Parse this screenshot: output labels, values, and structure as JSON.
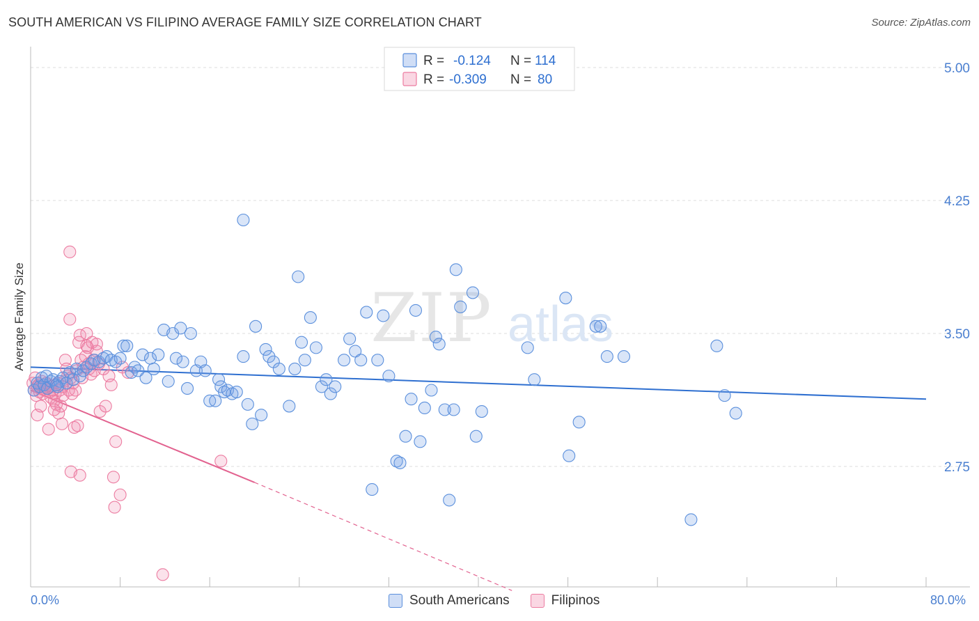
{
  "title": "SOUTH AMERICAN VS FILIPINO AVERAGE FAMILY SIZE CORRELATION CHART",
  "source": "Source: ZipAtlas.com",
  "watermark": {
    "zip": "ZIP",
    "atlas": "atlas"
  },
  "colors": {
    "blue": "#5a8fdc",
    "blue_fill": "rgba(120,160,230,0.28)",
    "blue_line": "#2e6fd0",
    "pink": "#ec7ba0",
    "pink_fill": "rgba(240,140,175,0.25)",
    "pink_line": "#e2628f",
    "axis_text": "#4a7fd0",
    "grid": "#dddddd"
  },
  "legend_top": [
    {
      "r_label": "R =",
      "r_value": "-0.124",
      "n_label": "N =",
      "n_value": "114"
    },
    {
      "r_label": "R =",
      "r_value": "-0.309",
      "n_label": "N =",
      "n_value": "80"
    }
  ],
  "legend_bottom": [
    "South Americans",
    "Filipinos"
  ],
  "chart_data": {
    "type": "scatter",
    "title": "SOUTH AMERICAN VS FILIPINO AVERAGE FAMILY SIZE CORRELATION CHART",
    "xlabel": "",
    "ylabel": "Average Family Size",
    "xlim": [
      0,
      80
    ],
    "ylim": [
      2.0,
      5.2
    ],
    "x_tick_labels": [
      "0.0%",
      "80.0%"
    ],
    "y_ticks": [
      2.75,
      3.5,
      4.25,
      5.0
    ],
    "y_tick_labels": [
      "2.75",
      "3.50",
      "4.25",
      "5.00"
    ],
    "grid": true,
    "legend_placement": "top-center",
    "series": [
      {
        "name": "South Americans",
        "r": -0.124,
        "n": 114,
        "trend": {
          "x": [
            0,
            80
          ],
          "y": [
            3.31,
            3.13
          ]
        },
        "points": [
          [
            0.3,
            3.18
          ],
          [
            0.6,
            3.22
          ],
          [
            0.8,
            3.2
          ],
          [
            1.0,
            3.25
          ],
          [
            1.2,
            3.21
          ],
          [
            1.5,
            3.19
          ],
          [
            1.8,
            3.23
          ],
          [
            2.0,
            3.24
          ],
          [
            2.3,
            3.21
          ],
          [
            2.6,
            3.23
          ],
          [
            2.9,
            3.25
          ],
          [
            3.2,
            3.22
          ],
          [
            3.5,
            3.28
          ],
          [
            3.8,
            3.24
          ],
          [
            4.1,
            3.3
          ],
          [
            4.4,
            3.26
          ],
          [
            4.7,
            3.29
          ],
          [
            5.0,
            3.31
          ],
          [
            5.4,
            3.33
          ],
          [
            5.7,
            3.35
          ],
          [
            6.1,
            3.34
          ],
          [
            6.5,
            3.36
          ],
          [
            6.8,
            3.37
          ],
          [
            7.2,
            3.35
          ],
          [
            7.6,
            3.34
          ],
          [
            8.0,
            3.36
          ],
          [
            8.3,
            3.43
          ],
          [
            8.6,
            3.43
          ],
          [
            9.0,
            3.28
          ],
          [
            9.3,
            3.31
          ],
          [
            9.6,
            3.29
          ],
          [
            10.0,
            3.38
          ],
          [
            10.3,
            3.25
          ],
          [
            10.7,
            3.36
          ],
          [
            11.0,
            3.3
          ],
          [
            11.4,
            3.38
          ],
          [
            11.9,
            3.52
          ],
          [
            12.3,
            3.23
          ],
          [
            12.7,
            3.5
          ],
          [
            13.0,
            3.36
          ],
          [
            13.4,
            3.53
          ],
          [
            13.6,
            3.34
          ],
          [
            14.0,
            3.19
          ],
          [
            14.3,
            3.5
          ],
          [
            14.8,
            3.29
          ],
          [
            15.2,
            3.34
          ],
          [
            15.6,
            3.29
          ],
          [
            16.0,
            3.12
          ],
          [
            16.5,
            3.12
          ],
          [
            16.8,
            3.24
          ],
          [
            17.0,
            3.2
          ],
          [
            17.3,
            3.17
          ],
          [
            17.6,
            3.18
          ],
          [
            18.0,
            3.16
          ],
          [
            18.4,
            3.17
          ],
          [
            19.0,
            3.37
          ],
          [
            19.4,
            3.1
          ],
          [
            19.8,
            2.99
          ],
          [
            20.1,
            3.54
          ],
          [
            20.6,
            3.04
          ],
          [
            21.0,
            3.41
          ],
          [
            21.3,
            3.37
          ],
          [
            21.7,
            3.34
          ],
          [
            22.2,
            3.3
          ],
          [
            23.1,
            3.09
          ],
          [
            23.6,
            3.3
          ],
          [
            23.9,
            3.82
          ],
          [
            24.2,
            3.45
          ],
          [
            24.5,
            3.35
          ],
          [
            25.0,
            3.59
          ],
          [
            25.5,
            3.42
          ],
          [
            26.0,
            3.2
          ],
          [
            26.4,
            3.24
          ],
          [
            26.8,
            3.16
          ],
          [
            27.2,
            3.2
          ],
          [
            28.0,
            3.35
          ],
          [
            28.5,
            3.47
          ],
          [
            29.0,
            3.4
          ],
          [
            29.5,
            3.35
          ],
          [
            30.0,
            3.62
          ],
          [
            30.5,
            2.62
          ],
          [
            31.0,
            3.35
          ],
          [
            31.5,
            3.6
          ],
          [
            32.0,
            3.26
          ],
          [
            32.7,
            2.78
          ],
          [
            33.0,
            2.77
          ],
          [
            33.5,
            2.92
          ],
          [
            34.0,
            3.13
          ],
          [
            34.4,
            3.63
          ],
          [
            34.8,
            2.89
          ],
          [
            35.2,
            3.08
          ],
          [
            35.8,
            3.18
          ],
          [
            36.2,
            3.48
          ],
          [
            36.5,
            3.44
          ],
          [
            37.0,
            3.07
          ],
          [
            37.4,
            2.56
          ],
          [
            37.8,
            3.07
          ],
          [
            38.0,
            3.86
          ],
          [
            38.4,
            3.65
          ],
          [
            39.5,
            3.73
          ],
          [
            39.8,
            2.92
          ],
          [
            40.3,
            3.06
          ],
          [
            44.4,
            3.42
          ],
          [
            45.0,
            3.24
          ],
          [
            47.8,
            3.7
          ],
          [
            48.1,
            2.81
          ],
          [
            49.0,
            3.0
          ],
          [
            50.5,
            3.54
          ],
          [
            50.9,
            3.54
          ],
          [
            51.5,
            3.37
          ],
          [
            53.0,
            3.37
          ],
          [
            19.0,
            4.14
          ],
          [
            62.0,
            3.15
          ],
          [
            63.0,
            3.05
          ],
          [
            59.0,
            2.45
          ],
          [
            61.3,
            3.43
          ],
          [
            1.4,
            3.26
          ],
          [
            2.4,
            3.2
          ]
        ]
      },
      {
        "name": "Filipinos",
        "r": -0.309,
        "n": 80,
        "trend": {
          "x": [
            0,
            20
          ],
          "y": [
            3.18,
            2.66
          ]
        },
        "trend_dashed": {
          "x": [
            20,
            43
          ],
          "y": [
            2.66,
            2.05
          ]
        },
        "points": [
          [
            0.2,
            3.22
          ],
          [
            0.3,
            3.18
          ],
          [
            0.4,
            3.25
          ],
          [
            0.5,
            3.15
          ],
          [
            0.6,
            3.2
          ],
          [
            0.7,
            3.21
          ],
          [
            0.8,
            3.17
          ],
          [
            0.9,
            3.19
          ],
          [
            1.0,
            3.23
          ],
          [
            1.1,
            3.16
          ],
          [
            1.2,
            3.2
          ],
          [
            1.3,
            3.18
          ],
          [
            1.4,
            3.22
          ],
          [
            1.5,
            3.19
          ],
          [
            1.6,
            3.21
          ],
          [
            1.7,
            3.17
          ],
          [
            1.8,
            3.14
          ],
          [
            1.9,
            3.2
          ],
          [
            2.0,
            3.18
          ],
          [
            2.1,
            3.12
          ],
          [
            2.2,
            3.16
          ],
          [
            2.3,
            3.1
          ],
          [
            2.4,
            3.22
          ],
          [
            2.5,
            3.05
          ],
          [
            2.6,
            3.18
          ],
          [
            2.7,
            3.09
          ],
          [
            2.8,
            3.2
          ],
          [
            2.9,
            3.15
          ],
          [
            3.0,
            3.23
          ],
          [
            3.1,
            3.35
          ],
          [
            3.2,
            3.3
          ],
          [
            3.3,
            3.26
          ],
          [
            3.4,
            3.18
          ],
          [
            3.5,
            3.58
          ],
          [
            3.6,
            3.25
          ],
          [
            3.7,
            3.16
          ],
          [
            3.8,
            3.22
          ],
          [
            3.9,
            2.97
          ],
          [
            4.0,
            3.18
          ],
          [
            4.1,
            3.29
          ],
          [
            4.2,
            2.98
          ],
          [
            4.3,
            3.45
          ],
          [
            4.4,
            3.49
          ],
          [
            4.5,
            3.35
          ],
          [
            4.6,
            3.25
          ],
          [
            4.7,
            3.31
          ],
          [
            4.9,
            3.37
          ],
          [
            5.0,
            3.43
          ],
          [
            5.1,
            3.42
          ],
          [
            5.2,
            3.3
          ],
          [
            5.4,
            3.27
          ],
          [
            5.5,
            3.45
          ],
          [
            5.7,
            3.29
          ],
          [
            5.9,
            3.4
          ],
          [
            6.1,
            3.33
          ],
          [
            6.2,
            3.06
          ],
          [
            6.5,
            3.3
          ],
          [
            6.7,
            3.09
          ],
          [
            7.0,
            3.26
          ],
          [
            7.2,
            3.21
          ],
          [
            7.4,
            2.69
          ],
          [
            7.6,
            2.89
          ],
          [
            8.0,
            2.59
          ],
          [
            8.2,
            3.31
          ],
          [
            8.7,
            3.28
          ],
          [
            0.6,
            3.04
          ],
          [
            0.9,
            3.09
          ],
          [
            1.6,
            2.96
          ],
          [
            2.1,
            3.07
          ],
          [
            2.8,
            2.99
          ],
          [
            3.6,
            2.72
          ],
          [
            4.4,
            2.7
          ],
          [
            5.0,
            3.5
          ],
          [
            5.2,
            3.33
          ],
          [
            5.6,
            3.35
          ],
          [
            5.9,
            3.44
          ],
          [
            3.5,
            3.96
          ],
          [
            7.5,
            2.52
          ],
          [
            11.8,
            2.14
          ],
          [
            17.0,
            2.78
          ]
        ]
      }
    ]
  }
}
